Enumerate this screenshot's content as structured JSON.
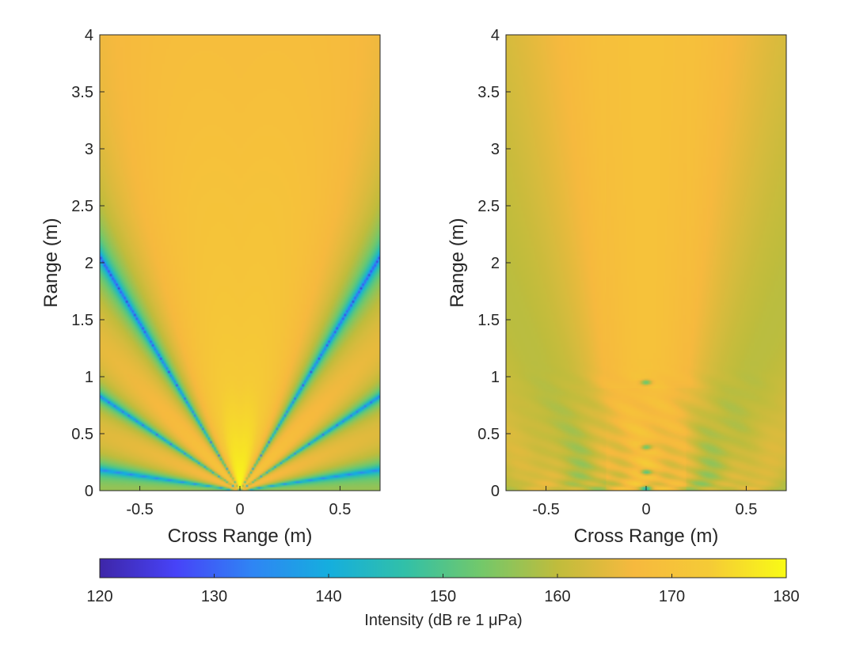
{
  "chart_data": [
    {
      "type": "heatmap",
      "xlabel": "Cross Range (m)",
      "ylabel": "Range (m)",
      "xlim": [
        -0.7,
        0.7
      ],
      "ylim": [
        0,
        4
      ],
      "x_ticks": [
        -0.5,
        0,
        0.5
      ],
      "x_tick_labels": [
        "-0.5",
        "0",
        "0.5"
      ],
      "y_ticks": [
        0,
        0.5,
        1,
        1.5,
        2,
        2.5,
        3,
        3.5,
        4
      ],
      "y_tick_labels": [
        "0",
        "0.5",
        "1",
        "1.5",
        "2",
        "2.5",
        "3",
        "3.5",
        "4"
      ],
      "grid": false,
      "field": "unfocused",
      "peak_db": 180,
      "axial_db_at_4m": 170,
      "null_db": 120
    },
    {
      "type": "heatmap",
      "xlabel": "Cross Range (m)",
      "ylabel": "Range (m)",
      "xlim": [
        -0.7,
        0.7
      ],
      "ylim": [
        0,
        4
      ],
      "x_ticks": [
        -0.5,
        0,
        0.5
      ],
      "x_tick_labels": [
        "-0.5",
        "0",
        "0.5"
      ],
      "y_ticks": [
        0,
        0.5,
        1,
        1.5,
        2,
        2.5,
        3,
        3.5,
        4
      ],
      "y_tick_labels": [
        "0",
        "0.5",
        "1",
        "1.5",
        "2",
        "2.5",
        "3",
        "3.5",
        "4"
      ],
      "grid": false,
      "field": "smoothed",
      "peak_db": 170,
      "axial_minima_m": [
        0.02,
        0.16,
        0.38,
        0.95
      ],
      "null_db": 145
    }
  ],
  "colorbar": {
    "label": "Intensity  (dB  re  1 μPa)",
    "range": [
      120,
      180
    ],
    "ticks": [
      120,
      130,
      140,
      150,
      160,
      170,
      180
    ],
    "tick_labels": [
      "120",
      "130",
      "140",
      "150",
      "160",
      "170",
      "180"
    ],
    "colormap": "parula",
    "colormap_stops": [
      "#3e26a8",
      "#4743f8",
      "#2f85f4",
      "#15aede",
      "#31c0a8",
      "#73c86a",
      "#c0bc3c",
      "#f6b93e",
      "#f5cb36",
      "#f9fb15"
    ]
  }
}
